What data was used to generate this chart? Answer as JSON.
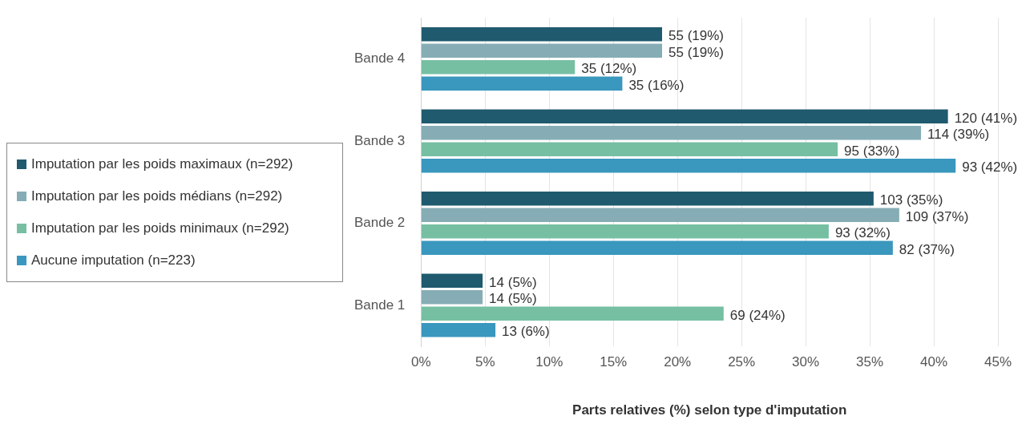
{
  "chart_data": {
    "type": "bar",
    "orientation": "horizontal",
    "xlabel": "Parts relatives (%) selon type d'imputation",
    "categories": [
      "Bande 4",
      "Bande 3",
      "Bande 2",
      "Bande 1"
    ],
    "series": [
      {
        "name": "Imputation par les poids maximaux (n=292)",
        "color": "#1f5a6e",
        "values": [
          18.8,
          41.1,
          35.3,
          4.8
        ],
        "value_labels": [
          "55 (19%)",
          "120 (41%)",
          "103 (35%)",
          "14 (5%)"
        ]
      },
      {
        "name": "Imputation par les poids médians (n=292)",
        "color": "#86adb5",
        "values": [
          18.8,
          39.0,
          37.3,
          4.8
        ],
        "value_labels": [
          "55 (19%)",
          "114 (39%)",
          "109 (37%)",
          "14 (5%)"
        ]
      },
      {
        "name": "Imputation par les poids minimaux (n=292)",
        "color": "#76bfa3",
        "values": [
          12.0,
          32.5,
          31.8,
          23.6
        ],
        "value_labels": [
          "35 (12%)",
          "95 (33%)",
          "93 (32%)",
          "69 (24%)"
        ]
      },
      {
        "name": "Aucune imputation (n=223)",
        "color": "#3a97bd",
        "values": [
          15.7,
          41.7,
          36.8,
          5.8
        ],
        "value_labels": [
          "35 (16%)",
          "93 (42%)",
          "82 (37%)",
          "13 (6%)"
        ]
      }
    ],
    "xlim": [
      0,
      45
    ],
    "xticks": [
      {
        "value": 0,
        "label": "0%"
      },
      {
        "value": 5,
        "label": "5%"
      },
      {
        "value": 10,
        "label": "10%"
      },
      {
        "value": 15,
        "label": "15%"
      },
      {
        "value": 20,
        "label": "20%"
      },
      {
        "value": 25,
        "label": "25%"
      },
      {
        "value": 30,
        "label": "30%"
      },
      {
        "value": 35,
        "label": "35%"
      },
      {
        "value": 40,
        "label": "40%"
      },
      {
        "value": 45,
        "label": "45%"
      }
    ],
    "grid": "x",
    "legend": "left"
  }
}
